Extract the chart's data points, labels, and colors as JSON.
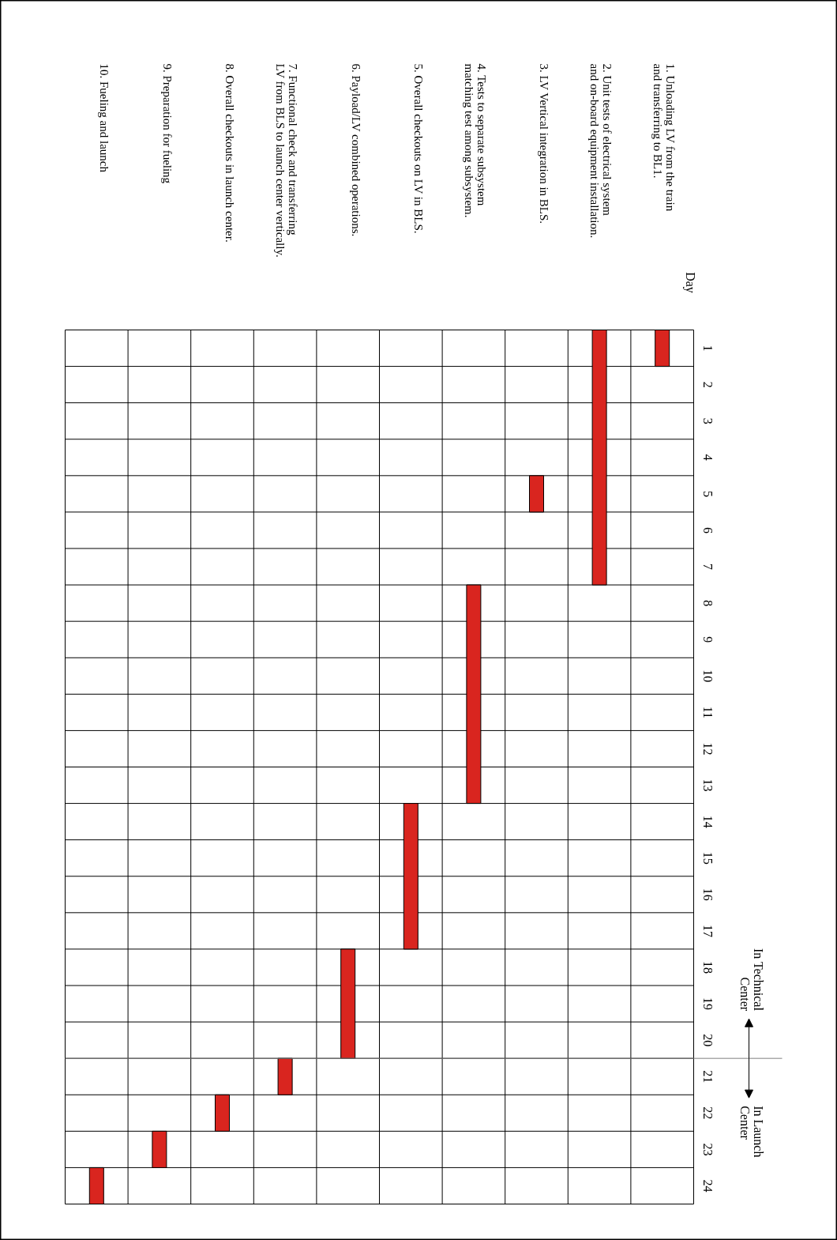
{
  "chart_data": {
    "type": "bar",
    "ylabel": "Day",
    "categories": [
      "10. Fueling and launch",
      "9. Preparation for fueling",
      "8. Overall checkouts in launch center.",
      "7. Functional check and transferring\nLV from BLS to launch center vertically.",
      "6. Payload/LV combined operations.",
      "5. Overall checkouts on LV in BLS.",
      "4. Tests to separate subsystem\nmatching test among subsystem.",
      "3.  LV Vertical integration in BLS.",
      "2. Unit tests of electrical system\nand on-board equipment installation.",
      "1. Unloading LV from the train\nand transferring to BL1."
    ],
    "base": [
      23,
      22,
      21,
      20,
      17,
      13,
      7,
      4,
      0,
      0
    ],
    "values": [
      1,
      1,
      1,
      1,
      3,
      4,
      6,
      1,
      7,
      1
    ],
    "color": "#d9251f",
    "ylim": [
      24,
      0
    ],
    "yticks": [
      {
        "value": 0.5,
        "label": "1"
      },
      {
        "value": 1.5,
        "label": "2"
      },
      {
        "value": 2.5,
        "label": "3"
      },
      {
        "value": 3.5,
        "label": "4"
      },
      {
        "value": 4.5,
        "label": "5"
      },
      {
        "value": 5.5,
        "label": "6"
      },
      {
        "value": 6.5,
        "label": "7"
      },
      {
        "value": 7.5,
        "label": "8"
      },
      {
        "value": 8.5,
        "label": "9"
      },
      {
        "value": 9.5,
        "label": "10"
      },
      {
        "value": 10.5,
        "label": "11"
      },
      {
        "value": 11.5,
        "label": "12"
      },
      {
        "value": 12.5,
        "label": "13"
      },
      {
        "value": 13.5,
        "label": "14"
      },
      {
        "value": 14.5,
        "label": "15"
      },
      {
        "value": 15.5,
        "label": "16"
      },
      {
        "value": 16.5,
        "label": "17"
      },
      {
        "value": 17.5,
        "label": "18"
      },
      {
        "value": 18.5,
        "label": "19"
      },
      {
        "value": 19.5,
        "label": "20"
      },
      {
        "value": 20.5,
        "label": "21"
      },
      {
        "value": 21.5,
        "label": "22"
      },
      {
        "value": 22.5,
        "label": "23"
      },
      {
        "value": 23.5,
        "label": "24"
      }
    ],
    "grid": true,
    "ref_lines": [
      {
        "axis": "y",
        "value": 20,
        "color": "#808080"
      }
    ],
    "annotations": [
      "In Technical\nCenter",
      "In Launch\nCenter"
    ]
  }
}
